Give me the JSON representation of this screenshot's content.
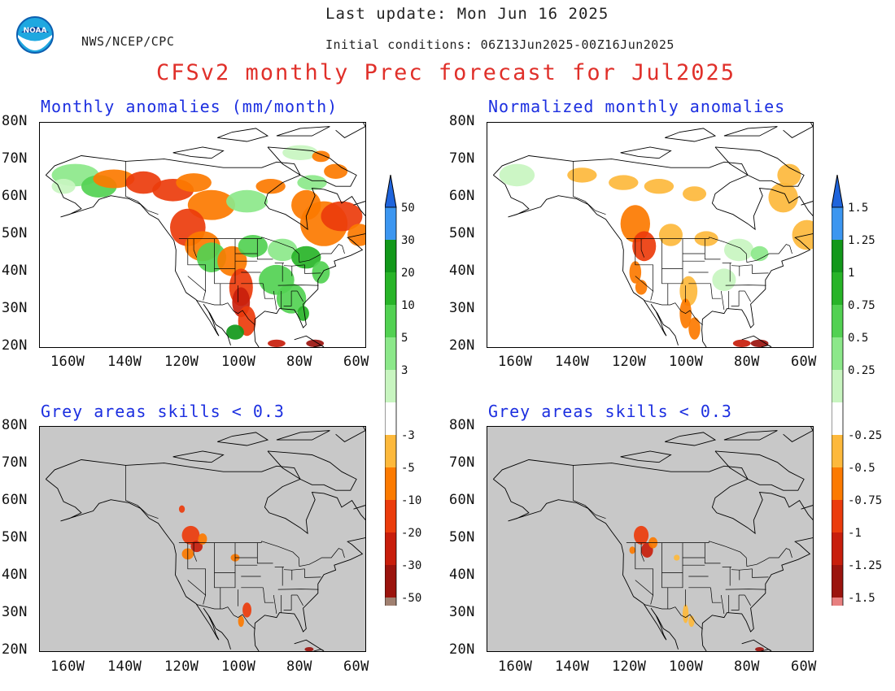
{
  "header": {
    "org": "NWS/NCEP/CPC",
    "last_update": "Last update: Mon Jun 16 2025",
    "initial_conditions": "Initial conditions: 06Z13Jun2025-00Z16Jun2025",
    "title": "CFSv2 monthly Prec forecast for Jul2025",
    "logo_text": "NOAA"
  },
  "panels": [
    {
      "title": "Monthly anomalies (mm/month)",
      "background": "white"
    },
    {
      "title": "Normalized monthly anomalies",
      "background": "white"
    },
    {
      "title": "Grey areas skills < 0.3",
      "background": "grey"
    },
    {
      "title": "Grey areas skills < 0.3",
      "background": "grey"
    }
  ],
  "axes": {
    "lat_labels": [
      "80N",
      "70N",
      "60N",
      "50N",
      "40N",
      "30N",
      "20N"
    ],
    "lon_labels": [
      "160W",
      "140W",
      "120W",
      "100W",
      "80W",
      "60W"
    ]
  },
  "colorbar_mm": {
    "labels": [
      "50",
      "30",
      "20",
      "10",
      "5",
      "3",
      "-3",
      "-5",
      "-10",
      "-20",
      "-30",
      "-50"
    ]
  },
  "colorbar_norm": {
    "labels": [
      "1.5",
      "1.25",
      "1",
      "0.75",
      "0.5",
      "0.25",
      "-0.25",
      "-0.5",
      "-0.75",
      "-1",
      "-1.25",
      "-1.5"
    ]
  },
  "colors": {
    "title_red": "#e0302a",
    "panel_title_blue": "#1c2fe0",
    "grey_mask": "#c8c8c8",
    "wet": [
      "#c8f5c0",
      "#8ce88a",
      "#52d152",
      "#28b428",
      "#12981a",
      "#3c96f0",
      "#1f64dc"
    ],
    "dry": [
      "#fdb93c",
      "#fc7a00",
      "#eb3c0c",
      "#c81e0c",
      "#9b140e",
      "#a08070",
      "#5a3c2d"
    ],
    "dry_norm_tip": "#e88080"
  }
}
